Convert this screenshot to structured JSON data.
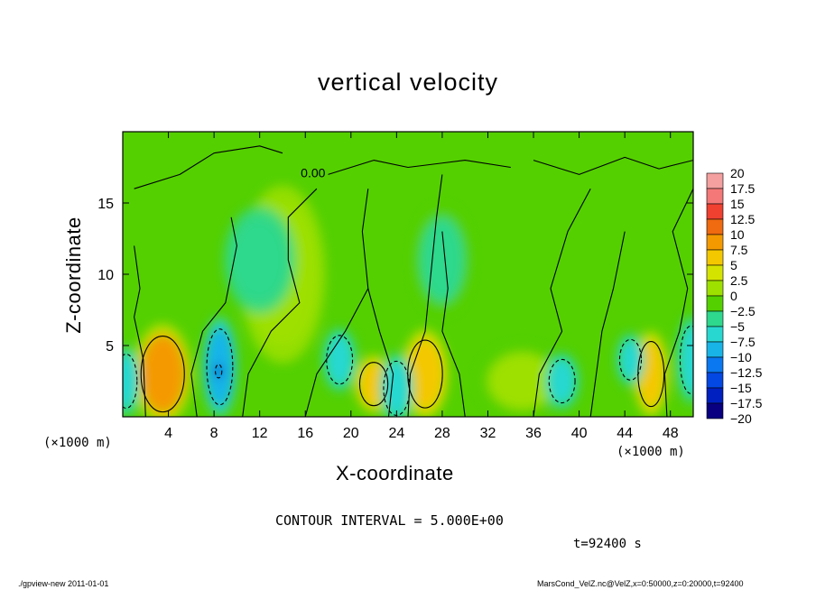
{
  "chart_data": {
    "type": "heatmap",
    "title": "vertical velocity",
    "xlabel": "X-coordinate",
    "ylabel": "Z-coordinate",
    "x_unit": "(×1000 m)",
    "xlim": [
      0,
      50
    ],
    "ylim": [
      0,
      20
    ],
    "x_ticks": [
      4,
      8,
      12,
      16,
      20,
      24,
      28,
      32,
      36,
      40,
      44,
      48
    ],
    "y_ticks": [
      5,
      10,
      15
    ],
    "colorbar": {
      "levels": [
        "20",
        "17.5",
        "15",
        "12.5",
        "10",
        "7.5",
        "5",
        "2.5",
        "0",
        "−2.5",
        "−5",
        "−7.5",
        "−10",
        "−12.5",
        "−15",
        "−17.5",
        "−20"
      ],
      "colors": [
        "#f4a0a0",
        "#f47878",
        "#f04030",
        "#f06a10",
        "#f49a00",
        "#f4c800",
        "#d4e400",
        "#9ee000",
        "#54d000",
        "#2ed88c",
        "#28d8d0",
        "#18b4e8",
        "#0a78f0",
        "#0448e4",
        "#0020c0",
        "#080080",
        "#5a1aa0"
      ]
    },
    "contour_label": "0.00",
    "blobs": [
      {
        "x": 3.5,
        "z": 3.0,
        "rx": 2.0,
        "rz": 2.8,
        "v": 9
      },
      {
        "x": 22.0,
        "z": 2.3,
        "rx": 1.3,
        "rz": 1.6,
        "v": 7
      },
      {
        "x": 26.5,
        "z": 3.0,
        "rx": 1.6,
        "rz": 2.5,
        "v": 7
      },
      {
        "x": 46.3,
        "z": 3.0,
        "rx": 1.2,
        "rz": 2.4,
        "v": 7
      },
      {
        "x": 14.0,
        "z": 10.0,
        "rx": 3.0,
        "rz": 5.0,
        "v": 2.5
      },
      {
        "x": 35.0,
        "z": 2.5,
        "rx": 3.0,
        "rz": 2.0,
        "v": 2
      },
      {
        "x": 0.3,
        "z": 2.5,
        "rx": 1.0,
        "rz": 2.0,
        "v": -6
      },
      {
        "x": 8.5,
        "z": 3.5,
        "rx": 1.2,
        "rz": 2.8,
        "v": -7.5
      },
      {
        "x": 8.4,
        "z": 3.2,
        "rx": 0.3,
        "rz": 0.5,
        "v": -14
      },
      {
        "x": 19.0,
        "z": 4.0,
        "rx": 1.2,
        "rz": 1.8,
        "v": -4
      },
      {
        "x": 24.0,
        "z": 2.0,
        "rx": 1.2,
        "rz": 2.0,
        "v": -5
      },
      {
        "x": 38.5,
        "z": 2.5,
        "rx": 1.2,
        "rz": 1.6,
        "v": -4
      },
      {
        "x": 44.5,
        "z": 4.0,
        "rx": 1.0,
        "rz": 1.5,
        "v": -5
      },
      {
        "x": 49.8,
        "z": 4.0,
        "rx": 1.0,
        "rz": 2.5,
        "v": -6
      },
      {
        "x": 12.0,
        "z": 11.0,
        "rx": 2.5,
        "rz": 3.0,
        "v": -3
      },
      {
        "x": 28.0,
        "z": 11.0,
        "rx": 2.0,
        "rz": 3.0,
        "v": -2
      }
    ]
  },
  "contour_interval": "CONTOUR INTERVAL = 5.000E+00",
  "time_label": "t=92400 s",
  "footer_left": "./gpview-new  2011-01-01",
  "footer_right": "MarsCond_VelZ.nc@VelZ,x=0:50000,z=0:20000,t=92400"
}
